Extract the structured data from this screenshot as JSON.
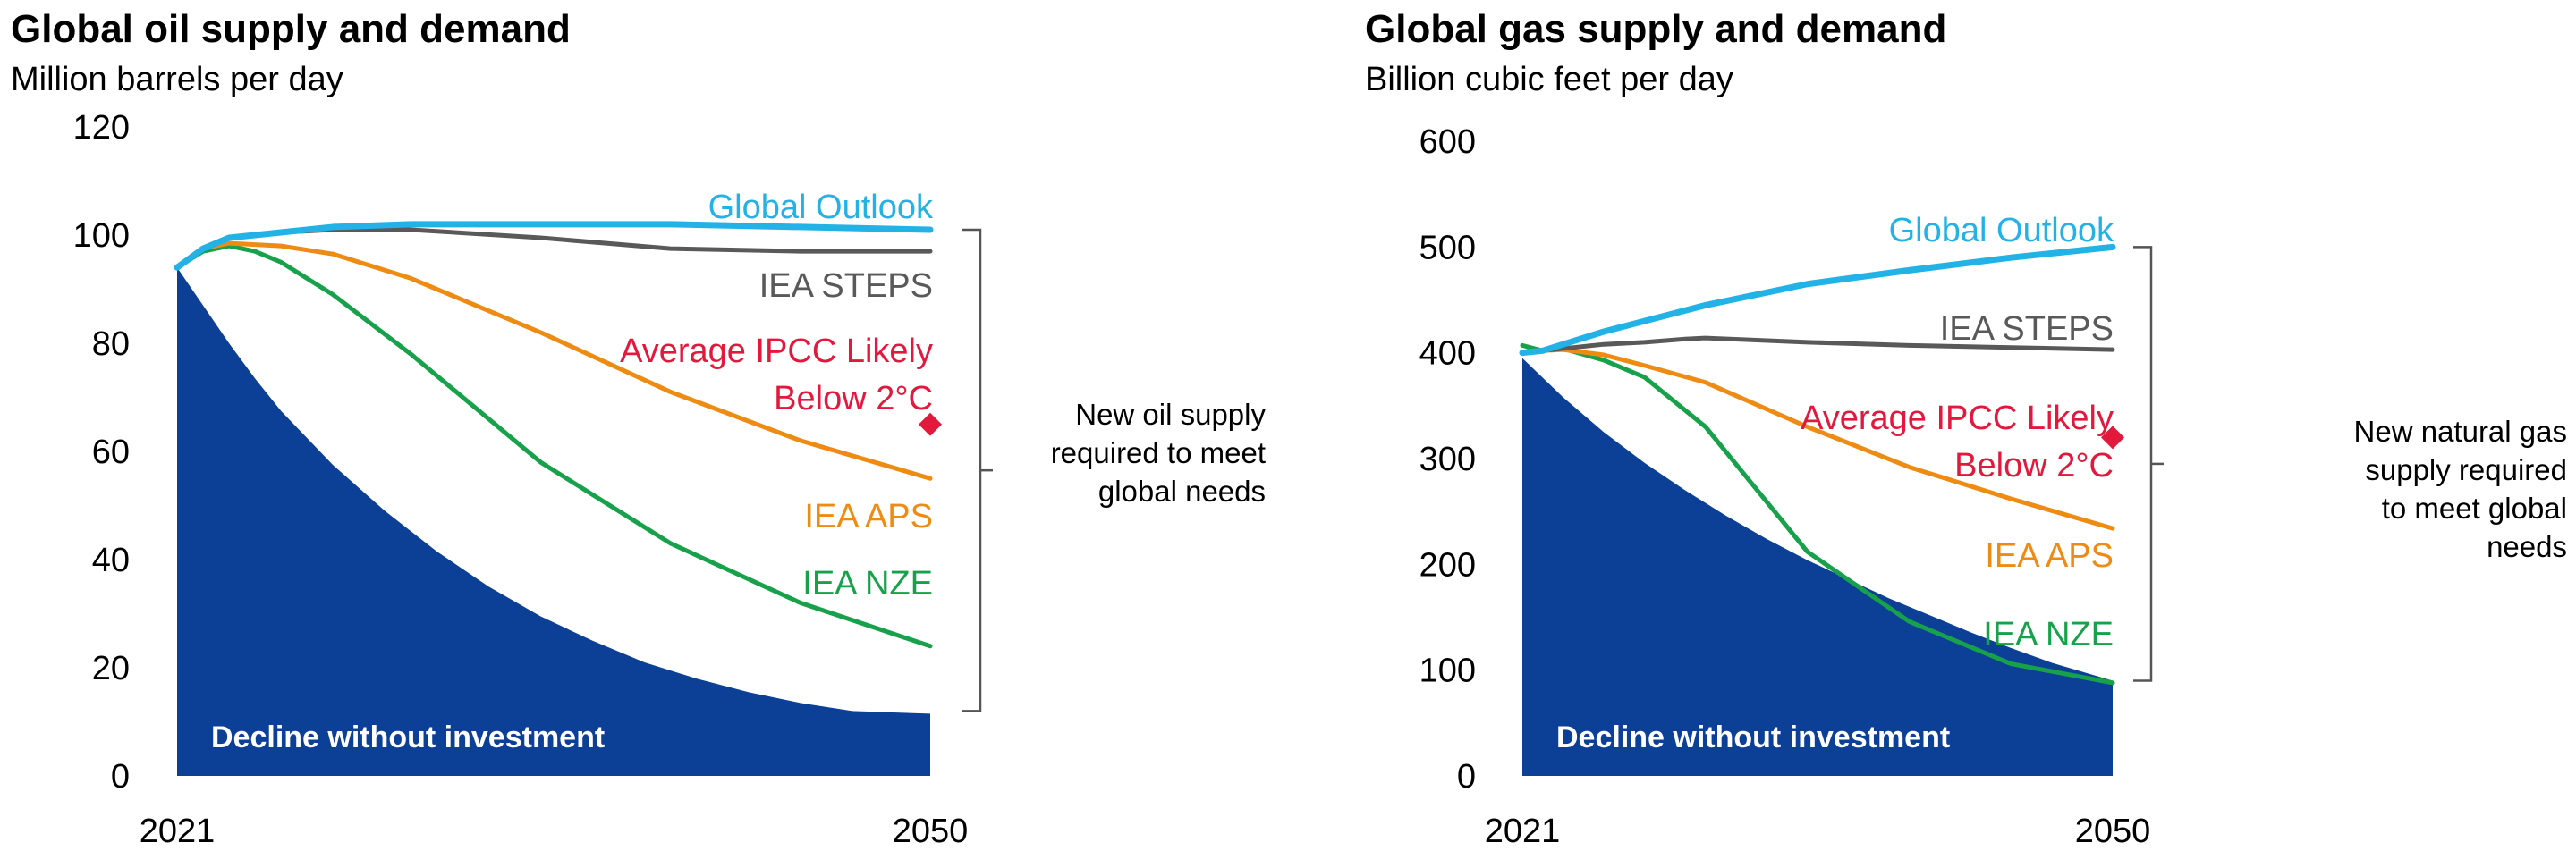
{
  "colors": {
    "decline_fill": "#0c3f96",
    "global_outlook": "#23b2e6",
    "iea_steps": "#595959",
    "ipcc": "#e2193c",
    "iea_aps": "#ee8b13",
    "iea_nze": "#16a14a",
    "bracket": "#555555"
  },
  "chart_data": [
    {
      "type": "area",
      "title": "Global oil supply and demand",
      "ylabel": "Million barrels per day",
      "xlabel": "",
      "xlim": [
        2021,
        2050
      ],
      "ylim": [
        0,
        120
      ],
      "x_ticks": [
        "2021",
        "2050"
      ],
      "y_ticks": [
        0,
        20,
        40,
        60,
        80,
        100,
        120
      ],
      "decline_area": {
        "label": "Decline without investment",
        "x": [
          2021,
          2022,
          2023,
          2024,
          2025,
          2027,
          2029,
          2031,
          2033,
          2035,
          2037,
          2039,
          2041,
          2043,
          2045,
          2047,
          2050
        ],
        "values": [
          94,
          87,
          80,
          73.5,
          67.5,
          57.5,
          49,
          41.5,
          35,
          29.5,
          25,
          21,
          18,
          15.5,
          13.5,
          12,
          11.5
        ]
      },
      "series": [
        {
          "name": "Global Outlook",
          "color_key": "global_outlook",
          "x": [
            2021,
            2022,
            2023,
            2025,
            2027,
            2030,
            2035,
            2040,
            2045,
            2050
          ],
          "values": [
            94,
            97.5,
            99.5,
            100.5,
            101.5,
            102,
            102,
            102,
            101.5,
            101
          ]
        },
        {
          "name": "IEA STEPS",
          "color_key": "iea_steps",
          "x": [
            2021,
            2022,
            2023,
            2025,
            2027,
            2030,
            2035,
            2040,
            2045,
            2050
          ],
          "values": [
            94,
            97.5,
            99.5,
            100.5,
            101,
            101,
            99.5,
            97.5,
            97,
            97
          ]
        },
        {
          "name": "IEA APS",
          "color_key": "iea_aps",
          "x": [
            2021,
            2022,
            2023,
            2025,
            2027,
            2030,
            2035,
            2040,
            2045,
            2050
          ],
          "values": [
            94,
            97.5,
            98.5,
            98,
            96.5,
            92,
            82,
            71,
            62,
            55
          ]
        },
        {
          "name": "IEA NZE",
          "color_key": "iea_nze",
          "x": [
            2021,
            2022,
            2023,
            2024,
            2025,
            2027,
            2030,
            2035,
            2040,
            2045,
            2050
          ],
          "values": [
            94,
            97,
            98,
            97,
            95,
            89,
            78,
            58,
            43,
            32,
            24
          ]
        }
      ],
      "marker": {
        "name": "Average IPCC Likely Below 2°C",
        "label_lines": [
          "Average IPCC Likely",
          "Below 2°C"
        ],
        "x": 2050,
        "value": 65,
        "color_key": "ipcc"
      },
      "series_labels": [
        {
          "text": "Global Outlook",
          "color_key": "global_outlook"
        },
        {
          "text": "IEA STEPS",
          "color_key": "iea_steps"
        },
        {
          "text": "IEA APS",
          "color_key": "iea_aps"
        },
        {
          "text": "IEA NZE",
          "color_key": "iea_nze"
        }
      ],
      "bracket": {
        "from": 101,
        "to": 12,
        "label_lines": [
          "New oil supply",
          "required to meet",
          "global needs"
        ]
      }
    },
    {
      "type": "area",
      "title": "Global gas supply and demand",
      "ylabel": "Billion cubic feet per day",
      "xlabel": "",
      "xlim": [
        2021,
        2050
      ],
      "ylim": [
        0,
        600
      ],
      "x_ticks": [
        "2021",
        "2050"
      ],
      "y_ticks": [
        0,
        100,
        200,
        300,
        400,
        500,
        600
      ],
      "decline_area": {
        "label": "Decline without investment",
        "x": [
          2021,
          2023,
          2025,
          2027,
          2029,
          2031,
          2033,
          2035,
          2037,
          2039,
          2041,
          2043,
          2045,
          2047,
          2050
        ],
        "values": [
          395,
          358,
          325,
          296,
          270,
          246,
          224,
          204,
          186,
          168,
          152,
          136,
          121,
          107,
          90
        ]
      },
      "series": [
        {
          "name": "Global Outlook",
          "color_key": "global_outlook",
          "x": [
            2021,
            2022,
            2023,
            2025,
            2027,
            2030,
            2035,
            2040,
            2045,
            2050
          ],
          "values": [
            400,
            402,
            408,
            420,
            430,
            445,
            465,
            478,
            490,
            500
          ]
        },
        {
          "name": "IEA STEPS",
          "color_key": "iea_steps",
          "x": [
            2021,
            2022,
            2023,
            2025,
            2027,
            2029,
            2030,
            2035,
            2040,
            2045,
            2050
          ],
          "values": [
            400,
            402,
            404,
            408,
            410,
            413,
            414,
            410,
            407,
            405,
            403
          ]
        },
        {
          "name": "IEA APS",
          "color_key": "iea_aps",
          "x": [
            2021,
            2022,
            2023,
            2025,
            2027,
            2030,
            2035,
            2040,
            2045,
            2050
          ],
          "values": [
            400,
            402,
            403,
            398,
            388,
            372,
            330,
            292,
            262,
            234
          ]
        },
        {
          "name": "IEA NZE",
          "color_key": "iea_nze",
          "x": [
            2021,
            2022,
            2023,
            2025,
            2027,
            2030,
            2035,
            2040,
            2045,
            2050
          ],
          "values": [
            407,
            402,
            404,
            393,
            377,
            330,
            212,
            146,
            106,
            88
          ]
        }
      ],
      "marker": {
        "name": "Average IPCC Likely Below 2°C",
        "label_lines": [
          "Average IPCC Likely",
          "Below 2°C"
        ],
        "x": 2050,
        "value": 320,
        "color_key": "ipcc"
      },
      "series_labels": [
        {
          "text": "Global Outlook",
          "color_key": "global_outlook"
        },
        {
          "text": "IEA STEPS",
          "color_key": "iea_steps"
        },
        {
          "text": "IEA APS",
          "color_key": "iea_aps"
        },
        {
          "text": "IEA NZE",
          "color_key": "iea_nze"
        }
      ],
      "bracket": {
        "from": 500,
        "to": 90,
        "label_lines": [
          "New natural gas",
          "supply required",
          "to meet global",
          "needs"
        ]
      }
    }
  ]
}
